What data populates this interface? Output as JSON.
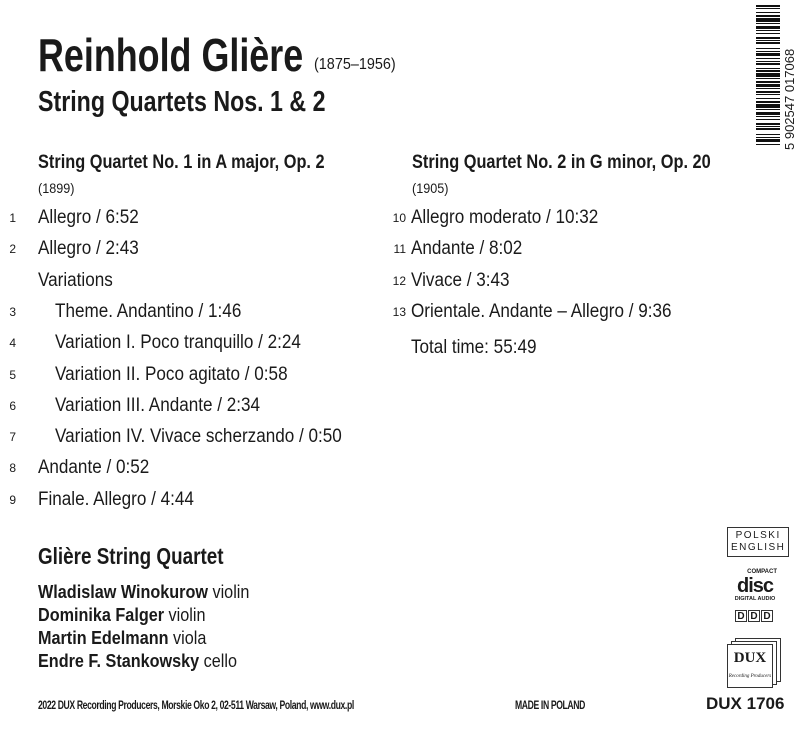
{
  "composer": "Reinhold Glière",
  "dates": "(1875–1956)",
  "subtitle": "String Quartets Nos. 1 & 2",
  "q1": {
    "title": "String Quartet No. 1 in A major, Op. 2",
    "year": "(1899)",
    "tracks": [
      {
        "n": "1",
        "t": "Allegro / 6:52"
      },
      {
        "n": "2",
        "t": "Allegro / 2:43"
      },
      {
        "n": "",
        "t": "Variations"
      },
      {
        "n": "3",
        "t": "Theme. Andantino / 1:46"
      },
      {
        "n": "4",
        "t": "Variation I. Poco tranquillo / 2:24"
      },
      {
        "n": "5",
        "t": "Variation II. Poco agitato / 0:58"
      },
      {
        "n": "6",
        "t": "Variation III. Andante / 2:34"
      },
      {
        "n": "7",
        "t": "Variation IV. Vivace scherzando / 0:50"
      },
      {
        "n": "8",
        "t": "Andante / 0:52"
      },
      {
        "n": "9",
        "t": "Finale. Allegro / 4:44"
      }
    ]
  },
  "q2": {
    "title": "String Quartet No. 2 in G minor, Op. 20",
    "year": "(1905)",
    "tracks": [
      {
        "n": "10",
        "t": "Allegro moderato / 10:32"
      },
      {
        "n": "11",
        "t": "Andante / 8:02"
      },
      {
        "n": "12",
        "t": "Vivace / 3:43"
      },
      {
        "n": "13",
        "t": "Orientale. Andante – Allegro / 9:36"
      }
    ],
    "total": "Total time: 55:49"
  },
  "ensemble": "Glière String Quartet",
  "members": [
    {
      "name": "Wladislaw Winokurow",
      "inst": "violin"
    },
    {
      "name": "Dominika Falger",
      "inst": "violin"
    },
    {
      "name": "Martin Edelmann",
      "inst": "viola"
    },
    {
      "name": "Endre F. Stankowsky",
      "inst": "cello"
    }
  ],
  "footer": {
    "publisher": "2022 DUX Recording Producers, Morskie Oko 2, 02-511 Warsaw, Poland, www.dux.pl",
    "made": "MADE IN POLAND",
    "catalog": "DUX 1706"
  },
  "barcode": "5 902547 017068",
  "languages": [
    "POLSKI",
    "ENGLISH"
  ],
  "logos": {
    "cd_top": "COMPACT",
    "cd_main": "disc",
    "cd_bottom": "DIGITAL AUDIO",
    "ddd": [
      "D",
      "D",
      "D"
    ],
    "dux": "DUX",
    "dux_sub": "Recording Producers"
  }
}
